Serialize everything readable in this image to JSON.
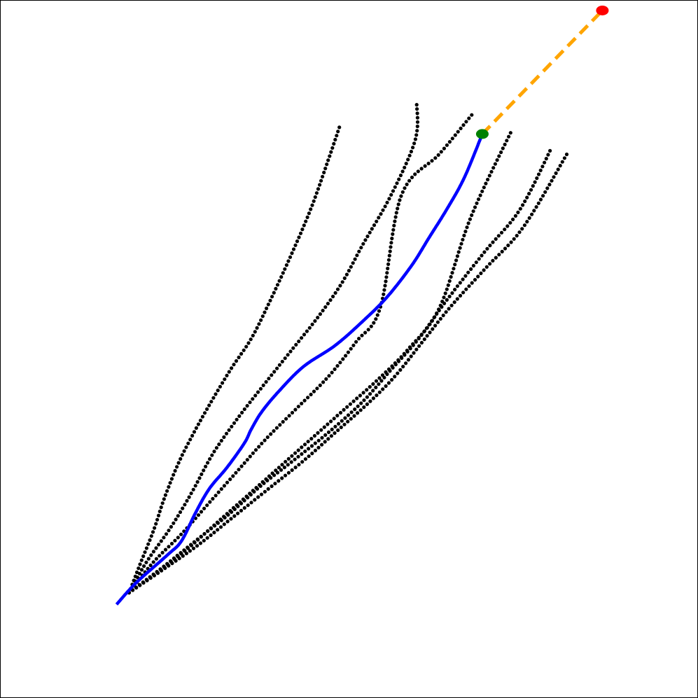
{
  "chart_data": {
    "type": "scatter",
    "title": "",
    "xlabel": "",
    "ylabel": "",
    "xlim": [
      0,
      100
    ],
    "ylim": [
      0,
      100
    ],
    "grid": false,
    "axes_visible": false,
    "legend": "none",
    "colors": {
      "samples": "#000000",
      "selected": "#0000ff",
      "current": "#008000",
      "goal": "#ff0000",
      "goal_line": "#ffa500"
    },
    "sample_trajectories": [
      {
        "points": [
          [
            18.5,
            15.1
          ],
          [
            20,
            19
          ],
          [
            22,
            24
          ],
          [
            23.5,
            28.5
          ],
          [
            25.5,
            33.5
          ],
          [
            27.5,
            37.5
          ],
          [
            30,
            42
          ],
          [
            33,
            47
          ],
          [
            36,
            51.5
          ],
          [
            38.5,
            56.5
          ],
          [
            41.5,
            63
          ],
          [
            44.5,
            70
          ],
          [
            47,
            77
          ],
          [
            48.8,
            82.3
          ]
        ]
      },
      {
        "points": [
          [
            18.5,
            15.1
          ],
          [
            21,
            19.5
          ],
          [
            24.5,
            24.5
          ],
          [
            27.5,
            29.5
          ],
          [
            30.5,
            35
          ],
          [
            34,
            40
          ],
          [
            37.5,
            44.5
          ],
          [
            41.5,
            49.5
          ],
          [
            45.5,
            54.5
          ],
          [
            49,
            59.5
          ],
          [
            52,
            65
          ],
          [
            56,
            72
          ],
          [
            59.5,
            80
          ],
          [
            59.7,
            85.3
          ]
        ]
      },
      {
        "points": [
          [
            18.5,
            15.1
          ],
          [
            22,
            19.5
          ],
          [
            26,
            23.5
          ],
          [
            30,
            28
          ],
          [
            34,
            32.5
          ],
          [
            38,
            37
          ],
          [
            42.5,
            41.5
          ],
          [
            47,
            46
          ],
          [
            51,
            51
          ],
          [
            54.5,
            56
          ],
          [
            57.5,
            72
          ],
          [
            63,
            78
          ],
          [
            67.8,
            83.8
          ]
        ]
      },
      {
        "points": [
          [
            18.5,
            15.1
          ],
          [
            22.5,
            18
          ],
          [
            27,
            21.5
          ],
          [
            31.5,
            25.5
          ],
          [
            36,
            29.5
          ],
          [
            40.5,
            33.5
          ],
          [
            45,
            37.5
          ],
          [
            49.5,
            41.5
          ],
          [
            54,
            45.5
          ],
          [
            58.5,
            50
          ],
          [
            63,
            56
          ],
          [
            67.5,
            69
          ],
          [
            73.4,
            81.5
          ]
        ]
      },
      {
        "points": [
          [
            18.5,
            15.1
          ],
          [
            23,
            18.5
          ],
          [
            28,
            22.5
          ],
          [
            33,
            26.5
          ],
          [
            37.5,
            30.5
          ],
          [
            42,
            34
          ],
          [
            47,
            38
          ],
          [
            52,
            42.5
          ],
          [
            56,
            47
          ],
          [
            60,
            51.5
          ],
          [
            64,
            57
          ],
          [
            69.5,
            64
          ],
          [
            74.5,
            70
          ],
          [
            79,
            78.8
          ]
        ]
      },
      {
        "points": [
          [
            18.5,
            15.1
          ],
          [
            23.5,
            18.5
          ],
          [
            28.5,
            22
          ],
          [
            33.5,
            26
          ],
          [
            38.5,
            30
          ],
          [
            43.5,
            34
          ],
          [
            48,
            38
          ],
          [
            52.5,
            42
          ],
          [
            56.5,
            46
          ],
          [
            60.5,
            51
          ],
          [
            64.5,
            56
          ],
          [
            69.5,
            61.5
          ],
          [
            75,
            67.5
          ],
          [
            81.2,
            77.9
          ]
        ]
      }
    ],
    "selected_trajectory": [
      [
        16.7,
        13.4
      ],
      [
        19.5,
        16.5
      ],
      [
        24,
        20.5
      ],
      [
        26,
        22.5
      ],
      [
        28,
        26.5
      ],
      [
        30,
        30
      ],
      [
        32.5,
        33
      ],
      [
        35,
        36.5
      ],
      [
        36,
        38.5
      ],
      [
        37.5,
        41
      ],
      [
        40,
        44
      ],
      [
        43.5,
        47.5
      ],
      [
        48,
        50.5
      ],
      [
        52,
        54
      ],
      [
        55.5,
        57.5
      ],
      [
        59,
        62
      ],
      [
        61.5,
        66
      ],
      [
        64,
        70
      ],
      [
        66.5,
        74.5
      ],
      [
        69.1,
        80.8
      ]
    ],
    "current_point": [
      69.1,
      80.8
    ],
    "goal_point": [
      86.3,
      98.5
    ]
  }
}
